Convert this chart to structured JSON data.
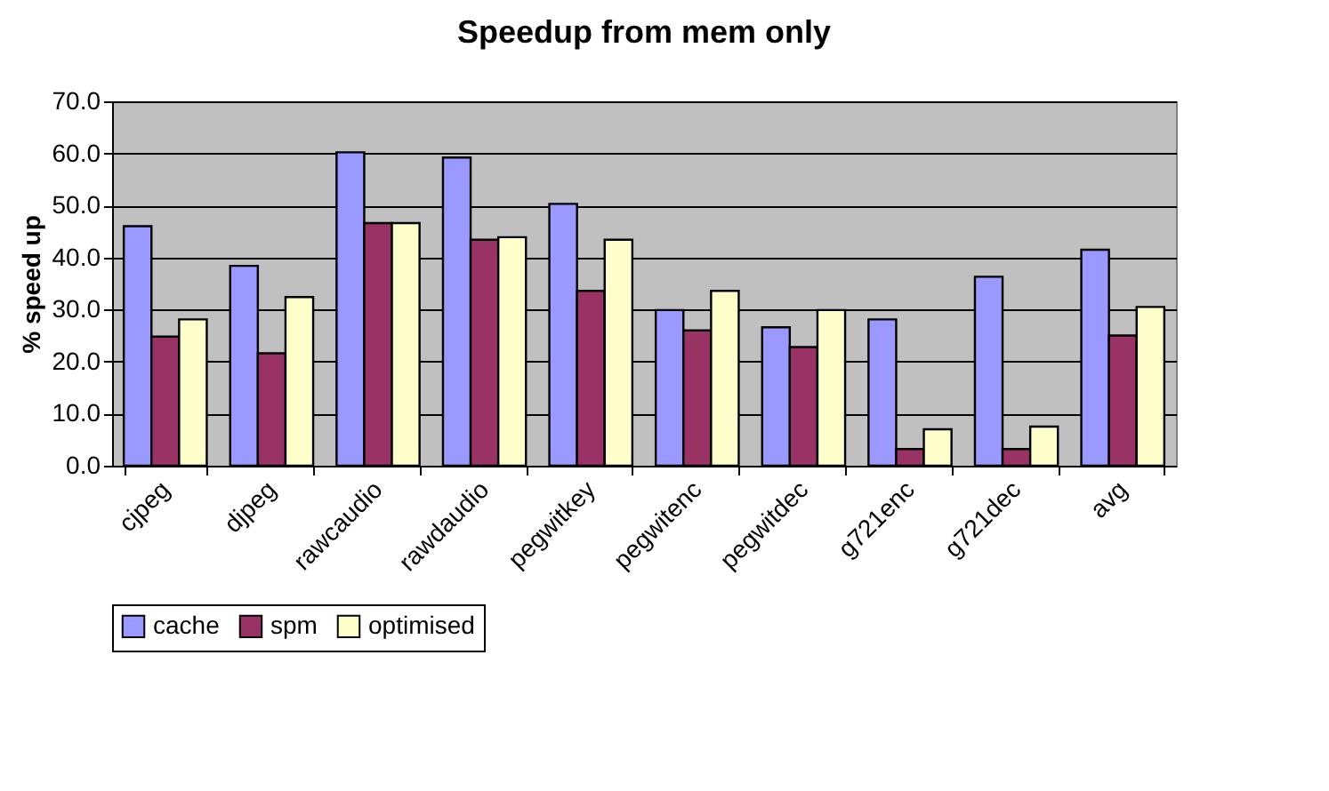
{
  "chart_data": {
    "type": "bar",
    "title": "Speedup from mem only",
    "ylabel": "% speed up",
    "categories": [
      "cjpeg",
      "djpeg",
      "rawcaudio",
      "rawdaudio",
      "pegwitkey",
      "pegwitenc",
      "pegwitdec",
      "g721enc",
      "g721dec",
      "avg"
    ],
    "series": [
      {
        "name": "cache",
        "color": "#9999ff",
        "values": [
          46.0,
          38.4,
          60.2,
          59.2,
          50.3,
          29.9,
          26.6,
          28.1,
          36.3,
          41.5
        ]
      },
      {
        "name": "spm",
        "color": "#993366",
        "values": [
          24.8,
          21.6,
          46.6,
          43.4,
          33.6,
          26.0,
          22.8,
          3.2,
          3.2,
          25.0
        ]
      },
      {
        "name": "optimised",
        "color": "#ffffcc",
        "values": [
          28.1,
          32.4,
          46.6,
          43.9,
          43.4,
          33.6,
          29.9,
          7.0,
          7.5,
          30.5
        ]
      }
    ],
    "ylim": [
      0,
      70
    ],
    "yticks": [
      {
        "value": 0,
        "label": "0.0"
      },
      {
        "value": 10,
        "label": "10.0"
      },
      {
        "value": 20,
        "label": "20.0"
      },
      {
        "value": 30,
        "label": "30.0"
      },
      {
        "value": 40,
        "label": "40.0"
      },
      {
        "value": 50,
        "label": "50.0"
      },
      {
        "value": 60,
        "label": "60.0"
      },
      {
        "value": 70,
        "label": "70.0"
      }
    ],
    "grid": "y",
    "legend": "bottom"
  }
}
